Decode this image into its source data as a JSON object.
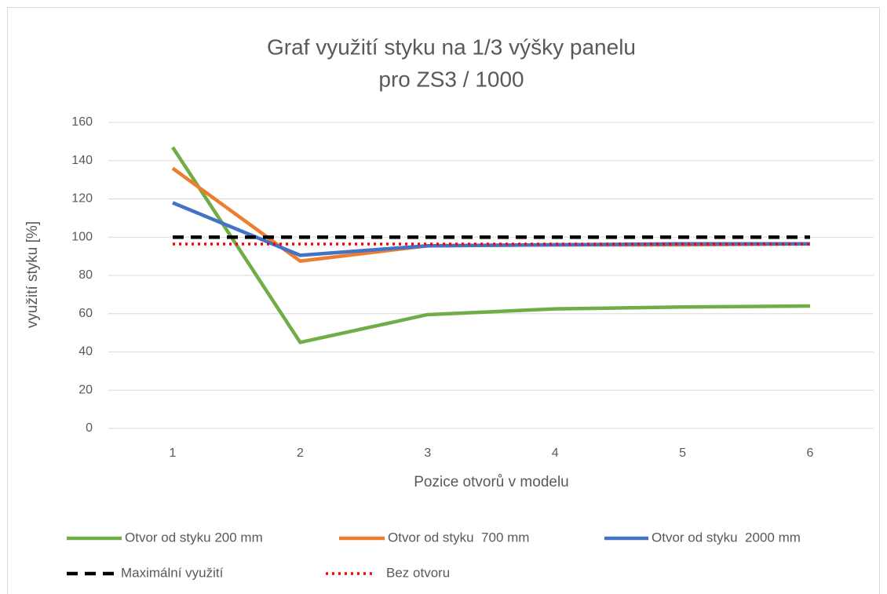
{
  "chart_data": {
    "type": "line",
    "title": [
      "Graf využití styku na 1/3 výšky panelu",
      "pro ZS3 / 1000"
    ],
    "x_label": "Pozice otvorů v modelu",
    "y_label": "využití styku [%]",
    "categories": [
      "1",
      "2",
      "3",
      "4",
      "5",
      "6"
    ],
    "series": [
      {
        "name": "Otvor od styku 200 mm",
        "color": "#70ad47",
        "dash": "solid",
        "values": [
          147,
          45,
          59.5,
          62.5,
          63.5,
          64
        ]
      },
      {
        "name": "Otvor od styku  700 mm",
        "color": "#ed7d31",
        "dash": "solid",
        "values": [
          136,
          87.5,
          95.5,
          96,
          96,
          96.5
        ]
      },
      {
        "name": "Otvor od styku  2000 mm",
        "color": "#4472c4",
        "dash": "solid",
        "values": [
          118,
          90.5,
          95.5,
          96,
          96.5,
          96.5
        ]
      },
      {
        "name": "Maximální využití",
        "color": "#000000",
        "dash": "dash",
        "values": [
          100,
          100,
          100,
          100,
          100,
          100
        ]
      },
      {
        "name": "Bez otvoru",
        "color": "#ff0000",
        "dash": "dot",
        "values": [
          96.4,
          96.4,
          96.4,
          96.4,
          96.4,
          96.4
        ]
      }
    ],
    "ylim": [
      0,
      160
    ],
    "yticks": [
      0,
      20,
      40,
      60,
      80,
      100,
      120,
      140,
      160
    ],
    "grid": true,
    "legend": "bottom"
  }
}
